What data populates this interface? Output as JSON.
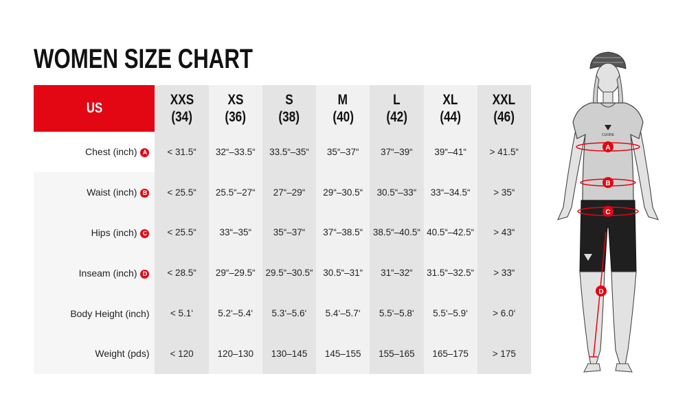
{
  "title": "WOMEN SIZE CHART",
  "colors": {
    "accent": "#e30613",
    "col_dark": "#e4e4e4",
    "col_light": "#f1f1f1"
  },
  "header": {
    "region": "US",
    "sizes": [
      {
        "name": "XXS",
        "eu": "(34)"
      },
      {
        "name": "XS",
        "eu": "(36)"
      },
      {
        "name": "S",
        "eu": "(38)"
      },
      {
        "name": "M",
        "eu": "(40)"
      },
      {
        "name": "L",
        "eu": "(42)"
      },
      {
        "name": "XL",
        "eu": "(44)"
      },
      {
        "name": "XXL",
        "eu": "(46)"
      }
    ]
  },
  "rows": [
    {
      "label": "Chest (inch)",
      "badge": "A",
      "values": [
        "< 31.5“",
        "32“–33.5“",
        "33.5“–35“",
        "35“–37“",
        "37“–39“",
        "39“–41“",
        "> 41.5“"
      ]
    },
    {
      "label": "Waist (inch)",
      "badge": "B",
      "values": [
        "< 25.5“",
        "25.5“–27“",
        "27“–29“",
        "29“–30.5“",
        "30.5“–33“",
        "33“–34.5“",
        "> 35“"
      ]
    },
    {
      "label": "Hips (inch)",
      "badge": "C",
      "values": [
        "< 25.5“",
        "33“–35“",
        "35“–37“",
        "37“–38.5“",
        "38.5“–40.5“",
        "40.5“–42.5“",
        "> 43“"
      ]
    },
    {
      "label": "Inseam (inch)",
      "badge": "D",
      "values": [
        "< 28.5“",
        "29“–29.5“",
        "29.5“–30.5“",
        "30.5“–31“",
        "31“–32“",
        "31.5“–32.5“",
        "> 33“"
      ]
    },
    {
      "label": "Body Height (inch)",
      "badge": "",
      "values": [
        "< 5.1‘",
        "5.2‘–5.4‘",
        "5.3‘–5.6‘",
        "5.4‘–5.7‘",
        "5.5‘–5.8‘",
        "5.5‘–5.9‘",
        "> 6.0‘"
      ]
    },
    {
      "label": "Weight (pds)",
      "badge": "",
      "values": [
        "< 120",
        "120–130",
        "130–145",
        "145–155",
        "155–165",
        "165–175",
        "> 175"
      ]
    }
  ],
  "figure": {
    "brand": "CUORE",
    "markers": [
      "A",
      "B",
      "C",
      "D"
    ],
    "icons": [
      "helmet-icon",
      "brand-logo-icon"
    ]
  }
}
